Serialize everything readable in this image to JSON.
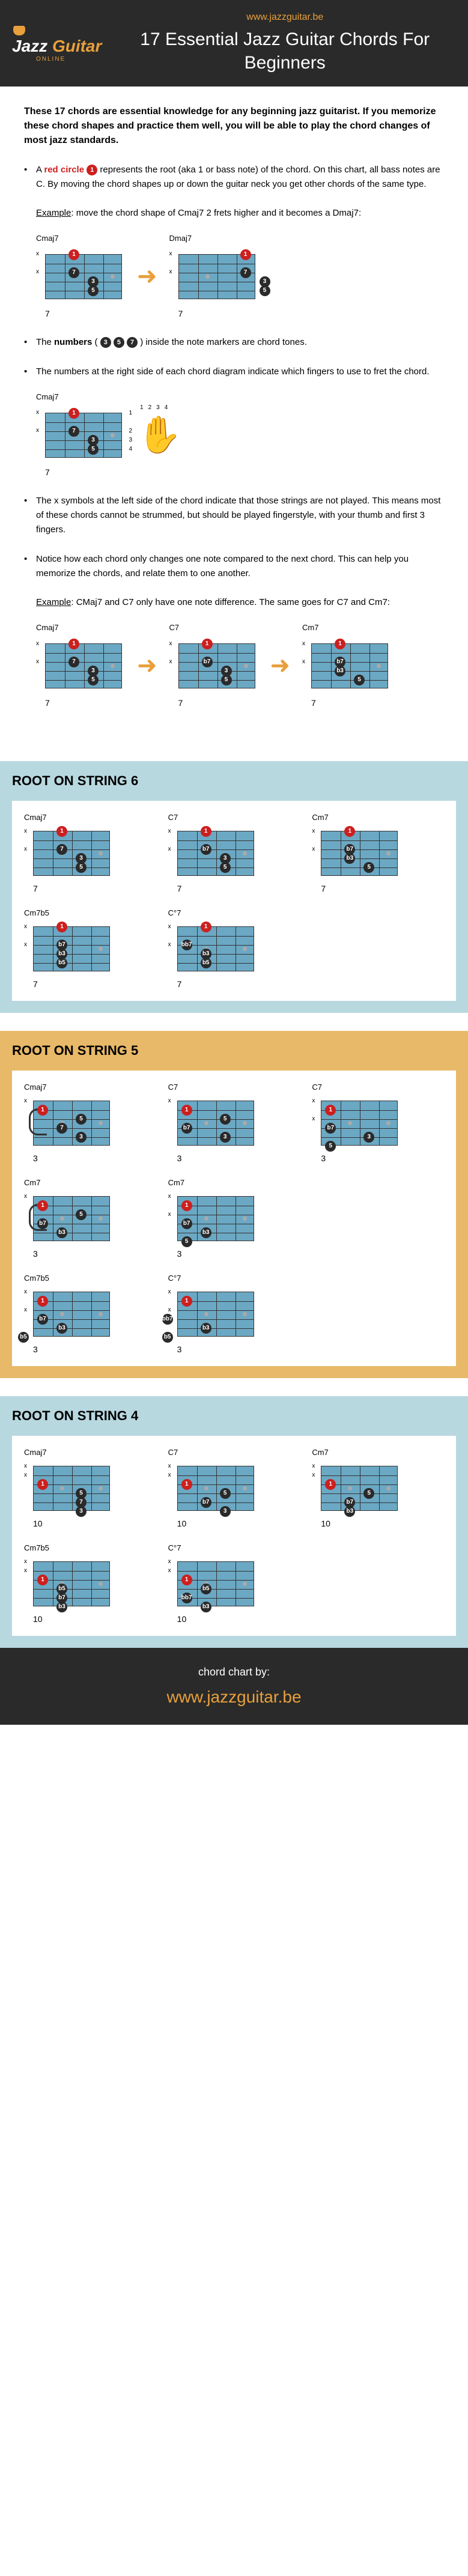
{
  "header": {
    "logo_jazz": "Jazz",
    "logo_guitar": "Guitar",
    "logo_online": "ONLINE",
    "url": "www.jazzguitar.be",
    "title": "17 Essential Jazz Guitar Chords For Beginners"
  },
  "intro": "These 17 chords are essential knowledge for any beginning jazz guitarist. If you memorize these chord shapes and practice them well, you will be able to play the chord changes of most jazz standards.",
  "bullets": {
    "b1_pre": "A ",
    "b1_red": "red circle",
    "b1_post": " represents the root (aka 1 or bass note) of the chord. On this chart, all bass notes are C. By moving the chord shapes up or down the guitar neck you get other chords of the same type.",
    "b1_example_label": "Example",
    "b1_example": ": move the chord shape of Cmaj7 2 frets higher and it becomes a Dmaj7:",
    "b2_pre": "The ",
    "b2_bold": "numbers",
    "b2_post": " inside the note markers are chord tones.",
    "b3": "The numbers at the right side of each chord diagram indicate which fingers to use to fret the chord.",
    "b4": "The x symbols at the left side of the chord indicate that those strings are not played. This means most of these chords cannot be strummed, but should be played fingerstyle, with your thumb and first 3 fingers.",
    "b5": "Notice how each chord only changes one note compared to the next chord. This can help you memorize the chords, and relate them to one another.",
    "b5_example_label": "Example",
    "b5_example": ": CMaj7 and C7 only have one note difference. The same goes for C7 and Cm7:"
  },
  "colors": {
    "bg_blue": "#b8d8e0",
    "bg_orange": "#e8b968",
    "fretboard": "#6ba8c4",
    "red": "#cc1f1f",
    "black": "#2a2a2a",
    "accent": "#e8a03c"
  },
  "sections": {
    "s1_title": "ROOT ON STRING 6",
    "s2_title": "ROOT ON STRING 5",
    "s3_title": "ROOT ON STRING 4"
  },
  "example_chords": {
    "cmaj7": {
      "name": "Cmaj7",
      "fret": "7",
      "strings": [
        "x",
        "",
        "x",
        "",
        "",
        ""
      ],
      "notes": [
        {
          "s": 5,
          "f": 1,
          "l": "1",
          "t": "red"
        },
        {
          "s": 3,
          "f": 1,
          "l": "7",
          "t": "black"
        },
        {
          "s": 2,
          "f": 2,
          "l": "3",
          "t": "black"
        },
        {
          "s": 1,
          "f": 2,
          "l": "5",
          "t": "black"
        }
      ]
    },
    "dmaj7": {
      "name": "Dmaj7",
      "fret": "7",
      "strings": [
        "x",
        "",
        "x",
        "",
        "",
        ""
      ],
      "notes": [
        {
          "s": 5,
          "f": 3,
          "l": "1",
          "t": "red"
        },
        {
          "s": 3,
          "f": 3,
          "l": "7",
          "t": "black"
        },
        {
          "s": 2,
          "f": 4,
          "l": "3",
          "t": "black"
        },
        {
          "s": 1,
          "f": 4,
          "l": "5",
          "t": "black"
        }
      ]
    },
    "cmaj7_fingers": {
      "name": "Cmaj7",
      "fret": "7",
      "strings": [
        "x",
        "",
        "x",
        "",
        "",
        ""
      ],
      "notes": [
        {
          "s": 5,
          "f": 1,
          "l": "1",
          "t": "red"
        },
        {
          "s": 3,
          "f": 1,
          "l": "7",
          "t": "black"
        },
        {
          "s": 2,
          "f": 2,
          "l": "3",
          "t": "black"
        },
        {
          "s": 1,
          "f": 2,
          "l": "5",
          "t": "black"
        }
      ],
      "fingers": [
        "1",
        "",
        "2",
        "3",
        "4"
      ]
    },
    "c7": {
      "name": "C7",
      "fret": "7",
      "strings": [
        "x",
        "",
        "x",
        "",
        "",
        ""
      ],
      "notes": [
        {
          "s": 5,
          "f": 1,
          "l": "1",
          "t": "red"
        },
        {
          "s": 3,
          "f": 1,
          "l": "b7",
          "t": "black"
        },
        {
          "s": 2,
          "f": 2,
          "l": "3",
          "t": "black"
        },
        {
          "s": 1,
          "f": 2,
          "l": "5",
          "t": "black"
        }
      ]
    },
    "cm7": {
      "name": "Cm7",
      "fret": "7",
      "strings": [
        "x",
        "",
        "x",
        "",
        "",
        ""
      ],
      "notes": [
        {
          "s": 5,
          "f": 1,
          "l": "1",
          "t": "red"
        },
        {
          "s": 3,
          "f": 1,
          "l": "b7",
          "t": "black"
        },
        {
          "s": 2,
          "f": 1,
          "l": "b3",
          "t": "black"
        },
        {
          "s": 1,
          "f": 2,
          "l": "5",
          "t": "black"
        }
      ]
    }
  },
  "section1_chords": [
    {
      "name": "Cmaj7",
      "fret": "7",
      "strings": [
        "x",
        "",
        "x",
        "",
        "",
        ""
      ],
      "notes": [
        {
          "s": 5,
          "f": 1,
          "l": "1",
          "t": "red"
        },
        {
          "s": 3,
          "f": 1,
          "l": "7",
          "t": "black"
        },
        {
          "s": 2,
          "f": 2,
          "l": "3",
          "t": "black"
        },
        {
          "s": 1,
          "f": 2,
          "l": "5",
          "t": "black"
        }
      ]
    },
    {
      "name": "C7",
      "fret": "7",
      "strings": [
        "x",
        "",
        "x",
        "",
        "",
        ""
      ],
      "notes": [
        {
          "s": 5,
          "f": 1,
          "l": "1",
          "t": "red"
        },
        {
          "s": 3,
          "f": 1,
          "l": "b7",
          "t": "black"
        },
        {
          "s": 2,
          "f": 2,
          "l": "3",
          "t": "black"
        },
        {
          "s": 1,
          "f": 2,
          "l": "5",
          "t": "black"
        }
      ]
    },
    {
      "name": "Cm7",
      "fret": "7",
      "strings": [
        "x",
        "",
        "x",
        "",
        "",
        ""
      ],
      "notes": [
        {
          "s": 5,
          "f": 1,
          "l": "1",
          "t": "red"
        },
        {
          "s": 3,
          "f": 1,
          "l": "b7",
          "t": "black"
        },
        {
          "s": 2,
          "f": 1,
          "l": "b3",
          "t": "black"
        },
        {
          "s": 1,
          "f": 2,
          "l": "5",
          "t": "black"
        }
      ]
    },
    {
      "name": "Cm7b5",
      "fret": "7",
      "strings": [
        "x",
        "",
        "x",
        "",
        "",
        ""
      ],
      "notes": [
        {
          "s": 5,
          "f": 1,
          "l": "1",
          "t": "red"
        },
        {
          "s": 3,
          "f": 1,
          "l": "b7",
          "t": "black"
        },
        {
          "s": 2,
          "f": 1,
          "l": "b3",
          "t": "black"
        },
        {
          "s": 1,
          "f": 1,
          "l": "b5",
          "t": "black"
        }
      ]
    },
    {
      "name": "C°7",
      "fret": "7",
      "strings": [
        "x",
        "",
        "x",
        "",
        "",
        ""
      ],
      "notes": [
        {
          "s": 5,
          "f": 1,
          "l": "1",
          "t": "red"
        },
        {
          "s": 3,
          "f": 0,
          "l": "bb7",
          "t": "black"
        },
        {
          "s": 2,
          "f": 1,
          "l": "b3",
          "t": "black"
        },
        {
          "s": 1,
          "f": 1,
          "l": "b5",
          "t": "black"
        }
      ]
    }
  ],
  "section2_chords": [
    {
      "name": "Cmaj7",
      "fret": "3",
      "strings": [
        "x",
        "",
        "",
        "",
        "",
        ""
      ],
      "notes": [
        {
          "s": 4,
          "f": 0,
          "l": "1",
          "t": "red"
        },
        {
          "s": 3,
          "f": 2,
          "l": "5",
          "t": "black"
        },
        {
          "s": 2,
          "f": 1,
          "l": "7",
          "t": "black"
        },
        {
          "s": 1,
          "f": 2,
          "l": "3",
          "t": "black"
        }
      ],
      "barre": true
    },
    {
      "name": "C7",
      "fret": "3",
      "strings": [
        "x",
        "",
        "",
        "",
        "",
        ""
      ],
      "notes": [
        {
          "s": 4,
          "f": 0,
          "l": "1",
          "t": "red"
        },
        {
          "s": 3,
          "f": 2,
          "l": "5",
          "t": "black"
        },
        {
          "s": 2,
          "f": 0,
          "l": "b7",
          "t": "black"
        },
        {
          "s": 1,
          "f": 2,
          "l": "3",
          "t": "black"
        }
      ]
    },
    {
      "name": "C7",
      "fret": "3",
      "strings": [
        "x",
        "",
        "x",
        "",
        "",
        ""
      ],
      "notes": [
        {
          "s": 4,
          "f": 0,
          "l": "1",
          "t": "red"
        },
        {
          "s": 2,
          "f": 0,
          "l": "b7",
          "t": "black"
        },
        {
          "s": 1,
          "f": 2,
          "l": "3",
          "t": "black"
        },
        {
          "s": 0,
          "f": 0,
          "l": "5",
          "t": "black"
        }
      ]
    },
    {
      "name": "Cm7",
      "fret": "3",
      "strings": [
        "x",
        "",
        "",
        "",
        "",
        ""
      ],
      "notes": [
        {
          "s": 4,
          "f": 0,
          "l": "1",
          "t": "red"
        },
        {
          "s": 3,
          "f": 2,
          "l": "5",
          "t": "black"
        },
        {
          "s": 2,
          "f": 0,
          "l": "b7",
          "t": "black"
        },
        {
          "s": 1,
          "f": 1,
          "l": "b3",
          "t": "black"
        }
      ],
      "barre": true
    },
    {
      "name": "Cm7",
      "fret": "3",
      "strings": [
        "x",
        "",
        "x",
        "",
        "",
        ""
      ],
      "notes": [
        {
          "s": 4,
          "f": 0,
          "l": "1",
          "t": "red"
        },
        {
          "s": 2,
          "f": 0,
          "l": "b7",
          "t": "black"
        },
        {
          "s": 1,
          "f": 1,
          "l": "b3",
          "t": "black"
        },
        {
          "s": 0,
          "f": 0,
          "l": "5",
          "t": "black"
        }
      ]
    },
    {
      "name": "",
      "fret": "",
      "strings": [],
      "notes": [],
      "empty": true
    },
    {
      "name": "Cm7b5",
      "fret": "3",
      "strings": [
        "x",
        "",
        "x",
        "",
        "",
        ""
      ],
      "notes": [
        {
          "s": 4,
          "f": 0,
          "l": "1",
          "t": "red"
        },
        {
          "s": 2,
          "f": 0,
          "l": "b7",
          "t": "black"
        },
        {
          "s": 1,
          "f": 1,
          "l": "b3",
          "t": "black"
        },
        {
          "s": 0,
          "f": -1,
          "l": "b5",
          "t": "black"
        }
      ]
    },
    {
      "name": "C°7",
      "fret": "3",
      "strings": [
        "x",
        "",
        "x",
        "",
        "",
        ""
      ],
      "notes": [
        {
          "s": 4,
          "f": 0,
          "l": "1",
          "t": "red"
        },
        {
          "s": 2,
          "f": -1,
          "l": "bb7",
          "t": "black"
        },
        {
          "s": 1,
          "f": 1,
          "l": "b3",
          "t": "black"
        },
        {
          "s": 0,
          "f": -1,
          "l": "b5",
          "t": "black"
        }
      ]
    }
  ],
  "section3_chords": [
    {
      "name": "Cmaj7",
      "fret": "10",
      "strings": [
        "x",
        "x",
        "",
        "",
        "",
        ""
      ],
      "notes": [
        {
          "s": 3,
          "f": 0,
          "l": "1",
          "t": "red"
        },
        {
          "s": 2,
          "f": 2,
          "l": "5",
          "t": "black"
        },
        {
          "s": 1,
          "f": 2,
          "l": "7",
          "t": "black"
        },
        {
          "s": 0,
          "f": 2,
          "l": "3",
          "t": "black"
        }
      ]
    },
    {
      "name": "C7",
      "fret": "10",
      "strings": [
        "x",
        "x",
        "",
        "",
        "",
        ""
      ],
      "notes": [
        {
          "s": 3,
          "f": 0,
          "l": "1",
          "t": "red"
        },
        {
          "s": 2,
          "f": 2,
          "l": "5",
          "t": "black"
        },
        {
          "s": 1,
          "f": 1,
          "l": "b7",
          "t": "black"
        },
        {
          "s": 0,
          "f": 2,
          "l": "3",
          "t": "black"
        }
      ]
    },
    {
      "name": "Cm7",
      "fret": "10",
      "strings": [
        "x",
        "x",
        "",
        "",
        "",
        ""
      ],
      "notes": [
        {
          "s": 3,
          "f": 0,
          "l": "1",
          "t": "red"
        },
        {
          "s": 2,
          "f": 2,
          "l": "5",
          "t": "black"
        },
        {
          "s": 1,
          "f": 1,
          "l": "b7",
          "t": "black"
        },
        {
          "s": 0,
          "f": 1,
          "l": "b3",
          "t": "black"
        }
      ]
    },
    {
      "name": "Cm7b5",
      "fret": "10",
      "strings": [
        "x",
        "x",
        "",
        "",
        "",
        ""
      ],
      "notes": [
        {
          "s": 3,
          "f": 0,
          "l": "1",
          "t": "red"
        },
        {
          "s": 2,
          "f": 1,
          "l": "b5",
          "t": "black"
        },
        {
          "s": 1,
          "f": 1,
          "l": "b7",
          "t": "black"
        },
        {
          "s": 0,
          "f": 1,
          "l": "b3",
          "t": "black"
        }
      ]
    },
    {
      "name": "C°7",
      "fret": "10",
      "strings": [
        "x",
        "x",
        "",
        "",
        "",
        ""
      ],
      "notes": [
        {
          "s": 3,
          "f": 0,
          "l": "1",
          "t": "red"
        },
        {
          "s": 2,
          "f": 1,
          "l": "b5",
          "t": "black"
        },
        {
          "s": 1,
          "f": 0,
          "l": "bb7",
          "t": "black"
        },
        {
          "s": 0,
          "f": 1,
          "l": "b3",
          "t": "black"
        }
      ]
    }
  ],
  "footer": {
    "label": "chord chart by:",
    "url": "www.jazzguitar.be"
  }
}
